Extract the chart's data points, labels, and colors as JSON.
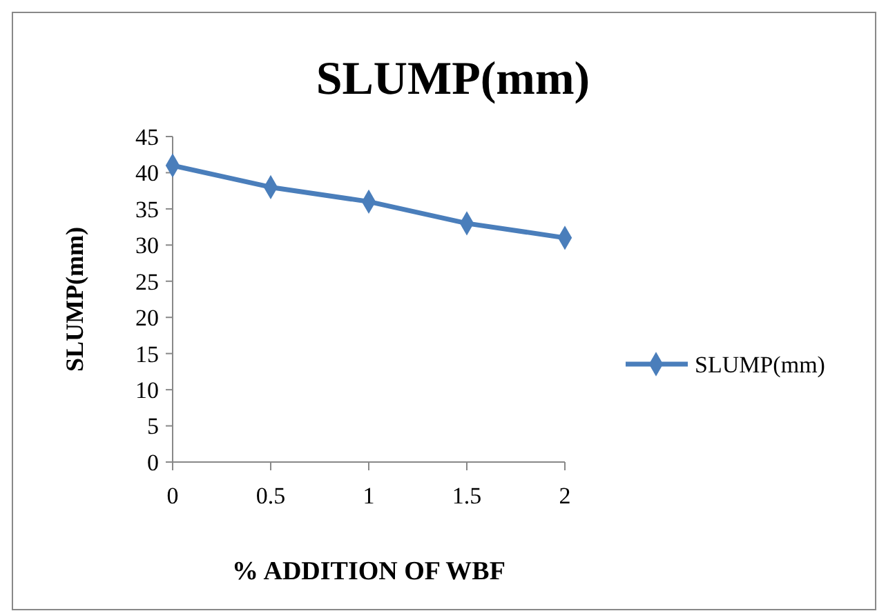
{
  "chart_data": {
    "type": "line",
    "title": "SLUMP(mm)",
    "xlabel": "% ADDITION OF WBF",
    "ylabel": "SLUMP(mm)",
    "x": [
      0,
      0.5,
      1,
      1.5,
      2
    ],
    "series": [
      {
        "name": "SLUMP(mm)",
        "color": "#4a7ebb",
        "values": [
          41,
          38,
          36,
          33,
          31
        ]
      }
    ],
    "xlim": [
      0,
      2
    ],
    "xticks": [
      0,
      0.5,
      1,
      1.5,
      2
    ],
    "ylim": [
      0,
      45
    ],
    "yticks": [
      0,
      5,
      10,
      15,
      20,
      25,
      30,
      35,
      40,
      45
    ],
    "marker": "diamond",
    "line_style": "solid",
    "legend": "right",
    "grid": false
  }
}
